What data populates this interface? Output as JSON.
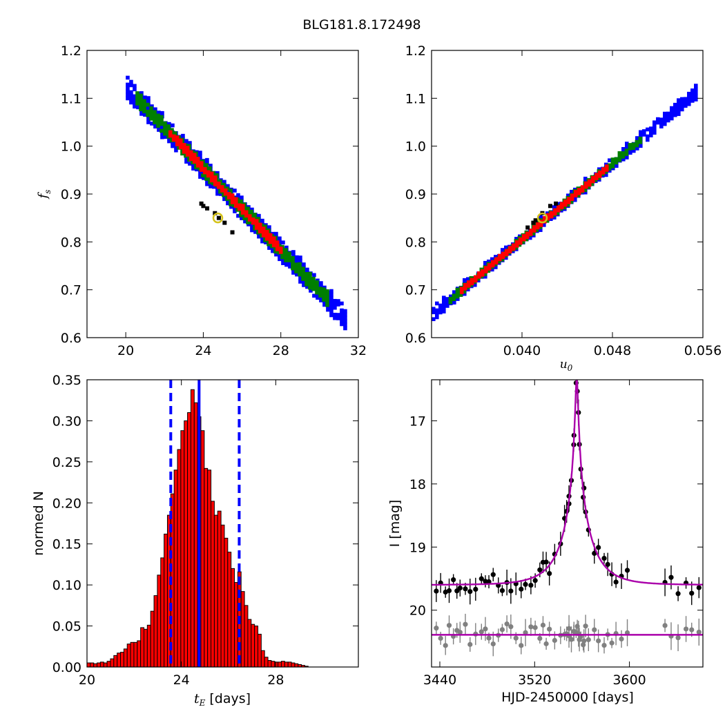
{
  "title": "BLG181.8.172498",
  "chart_data": [
    {
      "type": "scatter",
      "panel": "fs-vs-tE",
      "ylabel": "f",
      "ylabel_sub": "s",
      "xlim": [
        18,
        32
      ],
      "ylim": [
        0.6,
        1.2
      ],
      "xticks": [
        "20",
        "24",
        "28",
        "32"
      ],
      "xtick_values": [
        20,
        24,
        28,
        32
      ],
      "yticks": [
        "0.6",
        "0.7",
        "0.8",
        "0.9",
        "1.0",
        "1.1",
        "1.2"
      ],
      "ytick_values": [
        0.6,
        0.7,
        0.8,
        0.9,
        1.0,
        1.1,
        1.2
      ],
      "band": {
        "center_line": [
          [
            20.2,
            1.11
          ],
          [
            31.0,
            0.65
          ]
        ],
        "levels": [
          {
            "name": "blue",
            "x_range": [
              20.0,
              31.3
            ],
            "half_width": 0.022
          },
          {
            "name": "green",
            "x_range": [
              20.5,
              30.3
            ],
            "half_width": 0.014
          },
          {
            "name": "red",
            "x_range": [
              22.2,
              28.0
            ],
            "half_width": 0.008
          }
        ]
      },
      "best_cluster": [
        [
          23.9,
          0.88
        ],
        [
          24.2,
          0.87
        ],
        [
          24.6,
          0.86
        ],
        [
          25.1,
          0.84
        ],
        [
          25.5,
          0.82
        ],
        [
          24.0,
          0.875
        ],
        [
          24.8,
          0.85
        ]
      ],
      "best_fit": [
        24.75,
        0.85
      ],
      "colors": {
        "blue": "#0000ff",
        "green": "#007f00",
        "red": "#ff0000",
        "cluster": "#000000",
        "marker": "#d4c21a"
      }
    },
    {
      "type": "scatter",
      "panel": "fs-vs-u0",
      "xlabel": "u",
      "xlabel_sub": "0",
      "xlim": [
        0.032,
        0.056
      ],
      "ylim": [
        0.6,
        1.2
      ],
      "xticks": [
        "0.040",
        "0.048",
        "0.056"
      ],
      "xtick_values": [
        0.04,
        0.048,
        0.056
      ],
      "yticks": [
        "0.6",
        "0.7",
        "0.8",
        "0.9",
        "1.0",
        "1.1",
        "1.2"
      ],
      "ytick_values": [
        0.6,
        0.7,
        0.8,
        0.9,
        1.0,
        1.1,
        1.2
      ],
      "band": {
        "center_line": [
          [
            0.0321,
            0.65
          ],
          [
            0.0555,
            1.115
          ]
        ],
        "levels": [
          {
            "name": "blue",
            "x_range": [
              0.032,
              0.0555
            ],
            "half_width": 0.012
          },
          {
            "name": "green",
            "x_range": [
              0.0335,
              0.0505
            ],
            "half_width": 0.008
          },
          {
            "name": "red",
            "x_range": [
              0.0345,
              0.0475
            ],
            "half_width": 0.005
          }
        ]
      },
      "best_cluster": [
        [
          0.0405,
          0.83
        ],
        [
          0.0412,
          0.845
        ],
        [
          0.0418,
          0.86
        ],
        [
          0.0425,
          0.875
        ],
        [
          0.043,
          0.88
        ],
        [
          0.041,
          0.84
        ]
      ],
      "best_fit": [
        0.0418,
        0.85
      ],
      "colors": {
        "blue": "#0000ff",
        "green": "#007f00",
        "red": "#ff0000",
        "cluster": "#000000",
        "marker": "#d4c21a"
      }
    },
    {
      "type": "bar",
      "panel": "tE-histogram",
      "xlabel_sym": "t",
      "xlabel_sub": "E",
      "xlabel_unit": " [days]",
      "ylabel": "normed N",
      "xlim": [
        20,
        31.5
      ],
      "ylim": [
        0,
        0.35
      ],
      "bin_start": 20,
      "bin_width": 0.142,
      "values": [
        0.005,
        0.005,
        0.004,
        0.005,
        0.006,
        0.005,
        0.007,
        0.01,
        0.014,
        0.017,
        0.018,
        0.022,
        0.028,
        0.03,
        0.03,
        0.032,
        0.048,
        0.046,
        0.051,
        0.068,
        0.087,
        0.112,
        0.133,
        0.162,
        0.185,
        0.211,
        0.24,
        0.265,
        0.288,
        0.3,
        0.31,
        0.338,
        0.322,
        0.305,
        0.288,
        0.242,
        0.24,
        0.202,
        0.185,
        0.19,
        0.173,
        0.157,
        0.14,
        0.12,
        0.103,
        0.116,
        0.092,
        0.075,
        0.058,
        0.052,
        0.05,
        0.04,
        0.02,
        0.012,
        0.008,
        0.007,
        0.006,
        0.006,
        0.007,
        0.006,
        0.006,
        0.005,
        0.004,
        0.003,
        0.002,
        0.001
      ],
      "vline_solid": 24.75,
      "vlines_dashed": [
        23.55,
        26.45
      ],
      "xticks": [
        "20",
        "24",
        "28"
      ],
      "xtick_values": [
        20,
        24,
        28
      ],
      "yticks": [
        "0.00",
        "0.05",
        "0.10",
        "0.15",
        "0.20",
        "0.25",
        "0.30",
        "0.35"
      ],
      "ytick_values": [
        0.0,
        0.05,
        0.1,
        0.15,
        0.2,
        0.25,
        0.3,
        0.35
      ],
      "colors": {
        "bar": "#ff0000",
        "edge": "#000000",
        "line": "#0000ff"
      }
    },
    {
      "type": "scatter",
      "panel": "light-curve",
      "xlabel": "HJD-2450000 [days]",
      "ylabel": "I [mag]",
      "xlim": [
        3433,
        3662
      ],
      "ylim": [
        20.9,
        16.35
      ],
      "y_inverted": true,
      "xticks": [
        "3440",
        "3520",
        "3600"
      ],
      "xtick_values": [
        3440,
        3520,
        3600
      ],
      "yticks": [
        "17",
        "18",
        "19",
        "20"
      ],
      "ytick_values": [
        17,
        18,
        19,
        20
      ],
      "model": {
        "t0": 3555.5,
        "baseline": 19.6,
        "peak": 16.4
      },
      "model2_baseline": 20.39,
      "colors": {
        "model": "#aa00aa",
        "data": "#000000",
        "data2": "#808080"
      }
    }
  ]
}
